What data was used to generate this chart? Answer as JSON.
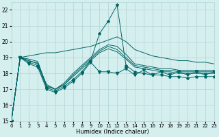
{
  "xlabel": "Humidex (Indice chaleur)",
  "background_color": "#d5eeee",
  "grid_color": "#b0d4d4",
  "line_color": "#006666",
  "xlim": [
    0,
    23
  ],
  "ylim": [
    15,
    22.5
  ],
  "yticks": [
    15,
    16,
    17,
    18,
    19,
    20,
    21,
    22
  ],
  "xticks": [
    0,
    1,
    2,
    3,
    4,
    5,
    6,
    7,
    8,
    9,
    10,
    11,
    12,
    13,
    14,
    15,
    16,
    17,
    18,
    19,
    20,
    21,
    22,
    23
  ],
  "series_plain": [
    [
      15.0,
      19.0,
      18.8,
      18.6,
      17.3,
      17.0,
      17.4,
      18.0,
      18.5,
      19.0,
      19.5,
      19.8,
      19.7,
      19.2,
      18.6,
      18.5,
      18.4,
      18.3,
      18.3,
      18.2,
      18.2,
      18.2,
      18.2,
      18.2
    ],
    [
      15.0,
      19.0,
      18.9,
      18.75,
      17.2,
      17.0,
      17.3,
      17.9,
      18.4,
      18.9,
      19.4,
      19.7,
      19.5,
      19.0,
      18.5,
      18.4,
      18.3,
      18.2,
      18.2,
      18.1,
      18.1,
      18.1,
      18.1,
      18.1
    ],
    [
      15.0,
      19.0,
      18.8,
      18.65,
      17.2,
      17.0,
      17.3,
      17.8,
      18.3,
      18.8,
      19.3,
      19.55,
      19.35,
      18.9,
      18.4,
      18.3,
      18.2,
      18.1,
      18.1,
      18.0,
      18.0,
      18.0,
      18.0,
      18.0
    ]
  ],
  "series_smooth_up": [
    [
      15.0,
      19.0,
      19.1,
      19.2,
      19.3,
      19.3,
      19.4,
      19.5,
      19.6,
      19.7,
      19.9,
      20.1,
      20.3,
      20.0,
      19.5,
      19.3,
      19.1,
      19.0,
      18.9,
      18.8,
      18.8,
      18.7,
      18.7,
      18.6
    ]
  ],
  "series_spike": {
    "x": [
      0,
      1,
      2,
      3,
      4,
      5,
      6,
      7,
      8,
      9,
      10,
      11,
      12,
      13,
      14,
      15,
      16,
      17,
      18,
      19,
      20,
      21,
      22,
      23
    ],
    "y": [
      15.0,
      19.0,
      18.7,
      18.5,
      17.1,
      16.9,
      17.2,
      17.6,
      18.1,
      18.8,
      20.5,
      21.3,
      22.3,
      18.5,
      18.1,
      18.0,
      17.9,
      17.9,
      17.8,
      17.8,
      17.7,
      17.8,
      17.8,
      17.8
    ],
    "marker": "*"
  },
  "series_zigzag": {
    "x": [
      0,
      1,
      2,
      3,
      4,
      5,
      6,
      7,
      8,
      9,
      10,
      11,
      12,
      13,
      14,
      15,
      16,
      17,
      18,
      19,
      20,
      21,
      22,
      23
    ],
    "y": [
      15.0,
      19.0,
      18.6,
      18.4,
      17.0,
      16.8,
      17.1,
      17.5,
      18.0,
      18.7,
      18.1,
      18.1,
      18.0,
      18.3,
      17.9,
      18.2,
      17.9,
      18.1,
      17.9,
      18.1,
      17.9,
      18.1,
      17.9,
      18.1
    ],
    "marker": "v"
  }
}
